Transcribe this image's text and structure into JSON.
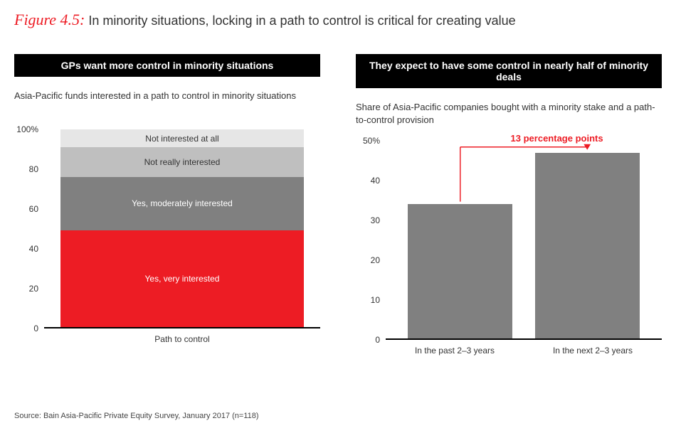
{
  "figure": {
    "number": "Figure 4.5:",
    "title": "In minority situations, locking in a path to control is critical for creating value"
  },
  "left_panel": {
    "header": "GPs want more control in minority situations",
    "subtitle": "Asia-Pacific funds interested in a path to control in minority situations",
    "chart": {
      "type": "stacked-bar",
      "ylim": [
        0,
        100
      ],
      "ytick_step": 20,
      "ytick_suffix_top": "%",
      "yticks": [
        "0",
        "20",
        "40",
        "60",
        "80",
        "100%"
      ],
      "category_label": "Path to control",
      "segments": [
        {
          "label": "Yes, very interested",
          "value": 49,
          "color": "#ed1c24",
          "text_color": "#ffffff"
        },
        {
          "label": "Yes, moderately interested",
          "value": 27,
          "color": "#808080",
          "text_color": "#ffffff"
        },
        {
          "label": "Not really interested",
          "value": 15,
          "color": "#bfbfbf",
          "text_color": "#333333"
        },
        {
          "label": "Not interested at all",
          "value": 9,
          "color": "#e6e6e6",
          "text_color": "#333333"
        }
      ],
      "background_color": "#ffffff",
      "axis_color": "#000000"
    }
  },
  "right_panel": {
    "header": "They expect to have some control in nearly half of minority deals",
    "subtitle": "Share of Asia-Pacific companies bought with a minority stake and a path-to-control provision",
    "chart": {
      "type": "bar",
      "ylim": [
        0,
        50
      ],
      "ytick_step": 10,
      "yticks": [
        "0",
        "10",
        "20",
        "30",
        "40",
        "50%"
      ],
      "bars": [
        {
          "label": "In the past 2–3 years",
          "value": 34,
          "color": "#808080"
        },
        {
          "label": "In the next 2–3 years",
          "value": 47,
          "color": "#808080"
        }
      ],
      "callout": {
        "text": "13 percentage points",
        "color": "#ed1c24"
      },
      "background_color": "#ffffff",
      "axis_color": "#000000"
    }
  },
  "source": "Source: Bain Asia-Pacific Private Equity Survey, January 2017 (n=118)"
}
